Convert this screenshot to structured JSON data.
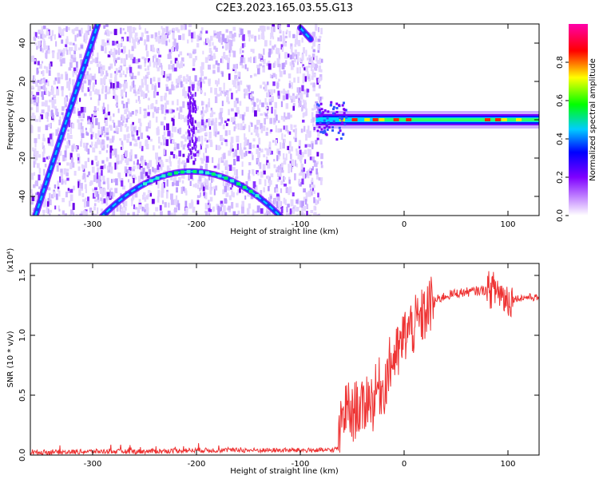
{
  "title": "C2E3.2023.165.03.55.G13",
  "chart_data": [
    {
      "type": "heatmap",
      "xlabel": "Height of straight line (km)",
      "ylabel": "Frequency (Hz)",
      "xlim": [
        -360,
        130
      ],
      "ylim": [
        -50,
        50
      ],
      "xticks": [
        -300,
        -200,
        -100,
        0,
        100
      ],
      "yticks": [
        -40,
        -20,
        0,
        20,
        40
      ],
      "colorbar": {
        "label": "Normalized spectral amplitude",
        "range": [
          0,
          1
        ],
        "ticks": [
          0.0,
          0.2,
          0.4,
          0.6,
          0.8
        ],
        "colors": [
          "#ffffff",
          "#cc99ff",
          "#7f00ff",
          "#0000ff",
          "#00ffff",
          "#00ff00",
          "#ffff00",
          "#ff0000",
          "#ff00aa"
        ]
      },
      "features": {
        "noise_region_x": [
          -360,
          -80
        ],
        "arch_vertex": [
          -205,
          -27
        ],
        "arch_edge_freq_at_x_-290": -50,
        "arch_edge_freq_at_x_-100": -50,
        "rising_line": {
          "from": [
            -355,
            -50
          ],
          "to": [
            -295,
            50
          ]
        },
        "falling_line": {
          "from": [
            -100,
            48
          ],
          "to": [
            -90,
            42
          ]
        },
        "signal_band": {
          "x": [
            -85,
            130
          ],
          "freq": 0
        }
      }
    },
    {
      "type": "line",
      "xlabel": "Height of straight line (km)",
      "ylabel": "SNR (10 * v/v)",
      "y_scale_label": "(x10⁴)",
      "xlim": [
        -360,
        130
      ],
      "ylim": [
        0,
        1.6
      ],
      "xticks": [
        -300,
        -200,
        -100,
        0,
        100
      ],
      "yticks": [
        0.0,
        0.5,
        1.0,
        1.5
      ],
      "color": "#ee3333",
      "series": [
        {
          "x": [
            -360,
            -300,
            -250,
            -200,
            -150,
            -100,
            -70,
            -63,
            -60,
            -55,
            -50,
            -45,
            -40,
            -35,
            -30,
            -25,
            -20,
            -15,
            -10,
            -5,
            0,
            5,
            10,
            15,
            20,
            25,
            30,
            40,
            50,
            60,
            70,
            80,
            90,
            95,
            100,
            110,
            120,
            130
          ],
          "y": [
            0.02,
            0.03,
            0.03,
            0.04,
            0.04,
            0.04,
            0.04,
            0.06,
            0.3,
            0.4,
            0.32,
            0.42,
            0.36,
            0.5,
            0.44,
            0.58,
            0.55,
            0.72,
            0.82,
            0.85,
            1.0,
            1.05,
            1.08,
            1.12,
            1.18,
            1.25,
            1.29,
            1.33,
            1.35,
            1.36,
            1.37,
            1.38,
            1.38,
            1.33,
            1.3,
            1.31,
            1.32,
            1.31
          ]
        }
      ]
    }
  ]
}
